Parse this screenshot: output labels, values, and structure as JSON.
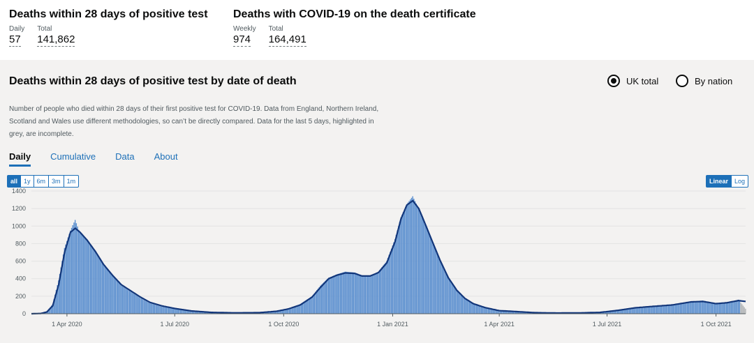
{
  "headlines": [
    {
      "title": "Deaths within 28 days of positive test",
      "metrics": [
        {
          "label": "Daily",
          "value": "57"
        },
        {
          "label": "Total",
          "value": "141,862"
        }
      ]
    },
    {
      "title": "Deaths with COVID-19 on the death certificate",
      "metrics": [
        {
          "label": "Weekly",
          "value": "974"
        },
        {
          "label": "Total",
          "value": "164,491"
        }
      ]
    }
  ],
  "card": {
    "title": "Deaths within 28 days of positive test by date of death",
    "radios": [
      {
        "label": "UK total",
        "selected": true
      },
      {
        "label": "By nation",
        "selected": false
      }
    ],
    "description": "Number of people who died within 28 days of their first positive test for COVID-19. Data from England, Northern Ireland, Scotland and Wales use different methodologies, so can’t be directly compared. Data for the last 5 days, highlighted in grey, are incomplete.",
    "tabs": [
      {
        "label": "Daily",
        "active": true
      },
      {
        "label": "Cumulative",
        "active": false
      },
      {
        "label": "Data",
        "active": false
      },
      {
        "label": "About",
        "active": false
      }
    ],
    "range_buttons": [
      {
        "label": "all",
        "selected": true
      },
      {
        "label": "1y",
        "selected": false
      },
      {
        "label": "6m",
        "selected": false
      },
      {
        "label": "3m",
        "selected": false
      },
      {
        "label": "1m",
        "selected": false
      }
    ],
    "scale_buttons": [
      {
        "label": "Linear",
        "selected": true
      },
      {
        "label": "Log",
        "selected": false
      }
    ]
  },
  "colors": {
    "bar": "#5b8fcf",
    "incomplete_bar": "#b1b4b6",
    "rolling_average": "#12367a",
    "link": "#1d70b8"
  },
  "chart_data": {
    "type": "bar",
    "title": "",
    "xlabel": "",
    "ylabel": "",
    "x_range": [
      "2020-03-02",
      "2021-10-26"
    ],
    "x_ticks": [
      {
        "date": "2020-04-01",
        "label": "1 Apr 2020"
      },
      {
        "date": "2020-07-01",
        "label": "1 Jul 2020"
      },
      {
        "date": "2020-10-01",
        "label": "1 Oct 2020"
      },
      {
        "date": "2021-01-01",
        "label": "1 Jan 2021"
      },
      {
        "date": "2021-04-01",
        "label": "1 Apr 2021"
      },
      {
        "date": "2021-07-01",
        "label": "1 Jul 2021"
      },
      {
        "date": "2021-10-01",
        "label": "1 Oct 2021"
      }
    ],
    "ylim": [
      0,
      1400
    ],
    "y_ticks": [
      0,
      200,
      400,
      600,
      800,
      1000,
      1200,
      1400
    ],
    "grid": true,
    "incomplete_days": 5,
    "series": [
      {
        "name": "",
        "style": "bars",
        "points": [
          [
            "2020-03-02",
            0
          ],
          [
            "2020-03-10",
            5
          ],
          [
            "2020-03-15",
            25
          ],
          [
            "2020-03-20",
            110
          ],
          [
            "2020-03-25",
            380
          ],
          [
            "2020-03-30",
            750
          ],
          [
            "2020-04-04",
            950
          ],
          [
            "2020-04-08",
            1070
          ],
          [
            "2020-04-12",
            920
          ],
          [
            "2020-04-18",
            850
          ],
          [
            "2020-04-25",
            720
          ],
          [
            "2020-05-02",
            570
          ],
          [
            "2020-05-10",
            440
          ],
          [
            "2020-05-17",
            320
          ],
          [
            "2020-05-25",
            250
          ],
          [
            "2020-06-02",
            180
          ],
          [
            "2020-06-10",
            120
          ],
          [
            "2020-06-20",
            80
          ],
          [
            "2020-07-01",
            60
          ],
          [
            "2020-07-15",
            30
          ],
          [
            "2020-08-01",
            15
          ],
          [
            "2020-08-20",
            10
          ],
          [
            "2020-09-10",
            12
          ],
          [
            "2020-09-25",
            30
          ],
          [
            "2020-10-05",
            60
          ],
          [
            "2020-10-15",
            110
          ],
          [
            "2020-10-25",
            200
          ],
          [
            "2020-11-01",
            320
          ],
          [
            "2020-11-08",
            410
          ],
          [
            "2020-11-15",
            450
          ],
          [
            "2020-11-22",
            480
          ],
          [
            "2020-11-30",
            470
          ],
          [
            "2020-12-06",
            440
          ],
          [
            "2020-12-13",
            430
          ],
          [
            "2020-12-20",
            480
          ],
          [
            "2020-12-27",
            600
          ],
          [
            "2021-01-03",
            850
          ],
          [
            "2021-01-08",
            1100
          ],
          [
            "2021-01-13",
            1250
          ],
          [
            "2021-01-18",
            1340
          ],
          [
            "2021-01-23",
            1200
          ],
          [
            "2021-01-28",
            1050
          ],
          [
            "2021-02-03",
            850
          ],
          [
            "2021-02-10",
            620
          ],
          [
            "2021-02-17",
            420
          ],
          [
            "2021-02-24",
            280
          ],
          [
            "2021-03-03",
            180
          ],
          [
            "2021-03-10",
            120
          ],
          [
            "2021-03-20",
            70
          ],
          [
            "2021-04-01",
            35
          ],
          [
            "2021-04-15",
            25
          ],
          [
            "2021-05-01",
            12
          ],
          [
            "2021-05-20",
            8
          ],
          [
            "2021-06-10",
            10
          ],
          [
            "2021-06-25",
            15
          ],
          [
            "2021-07-10",
            40
          ],
          [
            "2021-07-25",
            70
          ],
          [
            "2021-08-10",
            85
          ],
          [
            "2021-08-25",
            105
          ],
          [
            "2021-09-10",
            140
          ],
          [
            "2021-09-20",
            150
          ],
          [
            "2021-10-01",
            120
          ],
          [
            "2021-10-10",
            125
          ],
          [
            "2021-10-20",
            160
          ],
          [
            "2021-10-26",
            57
          ]
        ]
      },
      {
        "name": "",
        "style": "line",
        "points": [
          [
            "2020-03-02",
            0
          ],
          [
            "2020-03-10",
            3
          ],
          [
            "2020-03-15",
            20
          ],
          [
            "2020-03-20",
            90
          ],
          [
            "2020-03-25",
            330
          ],
          [
            "2020-03-30",
            700
          ],
          [
            "2020-04-04",
            930
          ],
          [
            "2020-04-08",
            975
          ],
          [
            "2020-04-12",
            930
          ],
          [
            "2020-04-18",
            840
          ],
          [
            "2020-04-25",
            710
          ],
          [
            "2020-05-02",
            560
          ],
          [
            "2020-05-10",
            430
          ],
          [
            "2020-05-17",
            330
          ],
          [
            "2020-05-25",
            260
          ],
          [
            "2020-06-02",
            190
          ],
          [
            "2020-06-10",
            130
          ],
          [
            "2020-06-20",
            90
          ],
          [
            "2020-07-01",
            60
          ],
          [
            "2020-07-15",
            32
          ],
          [
            "2020-08-01",
            15
          ],
          [
            "2020-08-20",
            10
          ],
          [
            "2020-09-10",
            12
          ],
          [
            "2020-09-25",
            28
          ],
          [
            "2020-10-05",
            55
          ],
          [
            "2020-10-15",
            100
          ],
          [
            "2020-10-25",
            190
          ],
          [
            "2020-11-01",
            300
          ],
          [
            "2020-11-08",
            400
          ],
          [
            "2020-11-15",
            440
          ],
          [
            "2020-11-22",
            465
          ],
          [
            "2020-11-30",
            460
          ],
          [
            "2020-12-06",
            430
          ],
          [
            "2020-12-13",
            430
          ],
          [
            "2020-12-20",
            470
          ],
          [
            "2020-12-27",
            580
          ],
          [
            "2021-01-03",
            820
          ],
          [
            "2021-01-08",
            1080
          ],
          [
            "2021-01-13",
            1240
          ],
          [
            "2021-01-18",
            1290
          ],
          [
            "2021-01-23",
            1200
          ],
          [
            "2021-01-28",
            1040
          ],
          [
            "2021-02-03",
            840
          ],
          [
            "2021-02-10",
            610
          ],
          [
            "2021-02-17",
            410
          ],
          [
            "2021-02-24",
            270
          ],
          [
            "2021-03-03",
            175
          ],
          [
            "2021-03-10",
            115
          ],
          [
            "2021-03-20",
            70
          ],
          [
            "2021-04-01",
            35
          ],
          [
            "2021-04-15",
            25
          ],
          [
            "2021-05-01",
            12
          ],
          [
            "2021-05-20",
            8
          ],
          [
            "2021-06-10",
            10
          ],
          [
            "2021-06-25",
            15
          ],
          [
            "2021-07-10",
            38
          ],
          [
            "2021-07-25",
            68
          ],
          [
            "2021-08-10",
            85
          ],
          [
            "2021-08-25",
            100
          ],
          [
            "2021-09-10",
            135
          ],
          [
            "2021-09-20",
            140
          ],
          [
            "2021-10-01",
            115
          ],
          [
            "2021-10-10",
            125
          ],
          [
            "2021-10-20",
            150
          ],
          [
            "2021-10-26",
            140
          ]
        ]
      }
    ]
  }
}
